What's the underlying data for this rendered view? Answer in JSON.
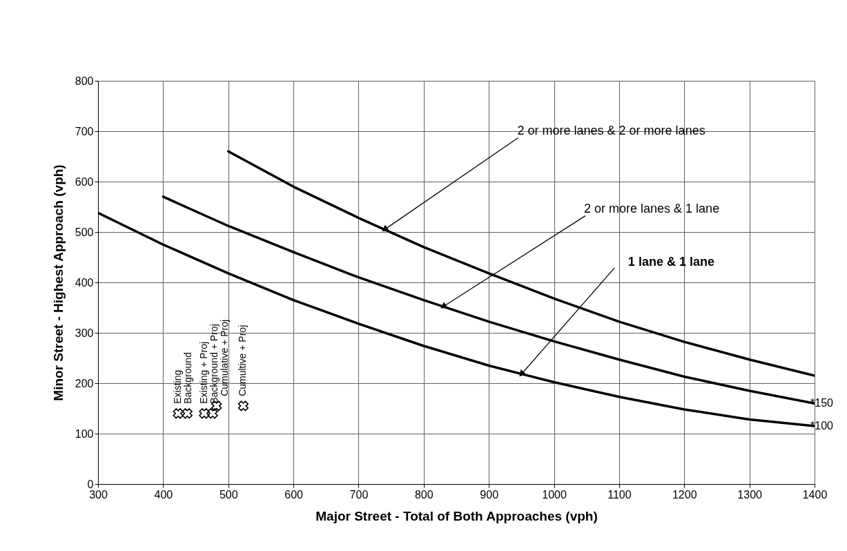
{
  "chart_data": {
    "type": "line",
    "xlabel": "Major Street - Total of Both Approaches (vph)",
    "ylabel": "Minor Street - Highest Approach (vph)",
    "xlim": [
      300,
      1400
    ],
    "xticks": [
      300,
      400,
      500,
      600,
      700,
      800,
      900,
      1000,
      1100,
      1200,
      1300,
      1400
    ],
    "ylim": [
      0,
      800
    ],
    "yticks": [
      0,
      100,
      200,
      300,
      400,
      500,
      600,
      700,
      800
    ],
    "grid": true,
    "line_style": "solid",
    "series": [
      {
        "color": "#000000",
        "x": [
          500,
          600,
          700,
          800,
          900,
          1000,
          1100,
          1200,
          1300,
          1400
        ],
        "values": [
          660,
          590,
          528,
          470,
          418,
          368,
          322,
          282,
          247,
          215
        ]
      },
      {
        "color": "#000000",
        "x": [
          400,
          500,
          600,
          700,
          800,
          900,
          1000,
          1100,
          1200,
          1300,
          1400
        ],
        "values": [
          570,
          512,
          460,
          410,
          365,
          322,
          283,
          247,
          213,
          185,
          160
        ]
      },
      {
        "color": "#000000",
        "x": [
          300,
          400,
          500,
          600,
          700,
          800,
          900,
          1000,
          1100,
          1200,
          1300,
          1400
        ],
        "values": [
          538,
          475,
          418,
          365,
          318,
          274,
          235,
          202,
          173,
          148,
          128,
          115
        ]
      },
      {
        "type": "scatter",
        "marker": "cross",
        "color": "#000000",
        "x": [
          423,
          437,
          463,
          476,
          482,
          523
        ],
        "values": [
          140,
          140,
          140,
          140,
          155,
          155
        ]
      }
    ],
    "annotations": [
      {
        "text": "2 or more lanes & 2 or more lanes",
        "x": 740,
        "y": 505
      },
      {
        "text": "2 or more lanes & 1 lane",
        "x": 830,
        "y": 352
      },
      {
        "text": "1 lane & 1 lane",
        "x": 950,
        "y": 218
      },
      {
        "text": "Existing",
        "x": 423,
        "y": 140
      },
      {
        "text": "Background",
        "x": 437,
        "y": 140
      },
      {
        "text": "Existing + Proj",
        "x": 463,
        "y": 140
      },
      {
        "text": "Background + Proj",
        "x": 476,
        "y": 140
      },
      {
        "text": "Cumulative + Proj",
        "x": 482,
        "y": 155
      },
      {
        "text": "Cumultive + Proj",
        "x": 523,
        "y": 155
      },
      {
        "text": "*150",
        "x": 1400,
        "y": 160
      },
      {
        "text": "*100",
        "x": 1400,
        "y": 115
      }
    ]
  }
}
